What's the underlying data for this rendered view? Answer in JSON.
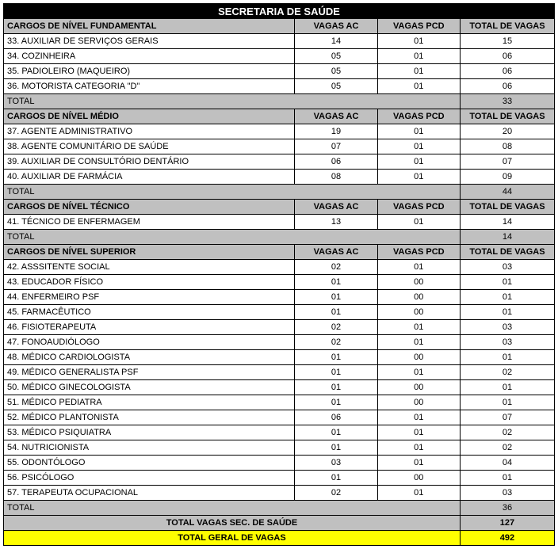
{
  "title": "SECRETARIA DE SAÚDE",
  "headers": {
    "vagas_ac": "VAGAS AC",
    "vagas_pcd": "VAGAS PCD",
    "total_vagas": "TOTAL DE VAGAS"
  },
  "sections": [
    {
      "name": "CARGOS DE NÍVEL FUNDAMENTAL",
      "rows": [
        {
          "cargo": "33.  AUXILIAR DE SERVIÇOS GERAIS",
          "ac": "14",
          "pcd": "01",
          "tot": "15"
        },
        {
          "cargo": "34.  COZINHEIRA",
          "ac": "05",
          "pcd": "01",
          "tot": "06"
        },
        {
          "cargo": "35.  PADIOLEIRO (MAQUEIRO)",
          "ac": "05",
          "pcd": "01",
          "tot": "06"
        },
        {
          "cargo": "36.  MOTORISTA CATEGORIA \"D\"",
          "ac": "05",
          "pcd": "01",
          "tot": "06"
        }
      ],
      "total_label": "TOTAL",
      "total_value": "33"
    },
    {
      "name": "CARGOS DE NÍVEL MÉDIO",
      "rows": [
        {
          "cargo": "37.  AGENTE ADMINISTRATIVO",
          "ac": "19",
          "pcd": "01",
          "tot": "20"
        },
        {
          "cargo": "38.  AGENTE COMUNITÁRIO DE SAÚDE",
          "ac": "07",
          "pcd": "01",
          "tot": "08"
        },
        {
          "cargo": "39.  AUXILIAR DE CONSULTÓRIO DENTÁRIO",
          "ac": "06",
          "pcd": "01",
          "tot": "07"
        },
        {
          "cargo": "40.  AUXILIAR DE FARMÁCIA",
          "ac": "08",
          "pcd": "01",
          "tot": "09"
        }
      ],
      "total_label": "TOTAL",
      "total_value": "44"
    },
    {
      "name": "CARGOS DE NÍVEL TÉCNICO",
      "rows": [
        {
          "cargo": "41.  TÉCNICO DE ENFERMAGEM",
          "ac": "13",
          "pcd": "01",
          "tot": "14"
        }
      ],
      "total_label": "TOTAL",
      "total_value": "14"
    },
    {
      "name": "CARGOS DE NÍVEL SUPERIOR",
      "rows": [
        {
          "cargo": "42.  ASSSITENTE SOCIAL",
          "ac": "02",
          "pcd": "01",
          "tot": "03"
        },
        {
          "cargo": "43.  EDUCADOR FÍSICO",
          "ac": "01",
          "pcd": "00",
          "tot": "01"
        },
        {
          "cargo": "44.  ENFERMEIRO PSF",
          "ac": "01",
          "pcd": "00",
          "tot": "01"
        },
        {
          "cargo": "45.  FARMACÊUTICO",
          "ac": "01",
          "pcd": "00",
          "tot": "01"
        },
        {
          "cargo": "46.  FISIOTERAPEUTA",
          "ac": "02",
          "pcd": "01",
          "tot": "03"
        },
        {
          "cargo": "47.  FONOAUDIÓLOGO",
          "ac": "02",
          "pcd": "01",
          "tot": "03"
        },
        {
          "cargo": "48.  MÉDICO CARDIOLOGISTA",
          "ac": "01",
          "pcd": "00",
          "tot": "01"
        },
        {
          "cargo": "49.  MÉDICO GENERALISTA PSF",
          "ac": "01",
          "pcd": "01",
          "tot": "02"
        },
        {
          "cargo": "50.  MÉDICO GINECOLOGISTA",
          "ac": "01",
          "pcd": "00",
          "tot": "01"
        },
        {
          "cargo": "51.  MÉDICO PEDIATRA",
          "ac": "01",
          "pcd": "00",
          "tot": "01"
        },
        {
          "cargo": "52.  MÉDICO PLANTONISTA",
          "ac": "06",
          "pcd": "01",
          "tot": "07"
        },
        {
          "cargo": "53.  MÉDICO PSIQUIATRA",
          "ac": "01",
          "pcd": "01",
          "tot": "02"
        },
        {
          "cargo": "54.  NUTRICIONISTA",
          "ac": "01",
          "pcd": "01",
          "tot": "02"
        },
        {
          "cargo": "55.  ODONTÓLOGO",
          "ac": "03",
          "pcd": "01",
          "tot": "04"
        },
        {
          "cargo": "56.  PSICÓLOGO",
          "ac": "01",
          "pcd": "00",
          "tot": "01"
        },
        {
          "cargo": "57.  TERAPEUTA OCUPACIONAL",
          "ac": "02",
          "pcd": "01",
          "tot": "03"
        }
      ],
      "total_label": " TOTAL",
      "total_value": "36"
    }
  ],
  "footer": {
    "sec_label": "TOTAL VAGAS SEC. DE SAÚDE",
    "sec_value": "127",
    "geral_label": "TOTAL GERAL DE VAGAS",
    "geral_value": "492"
  }
}
